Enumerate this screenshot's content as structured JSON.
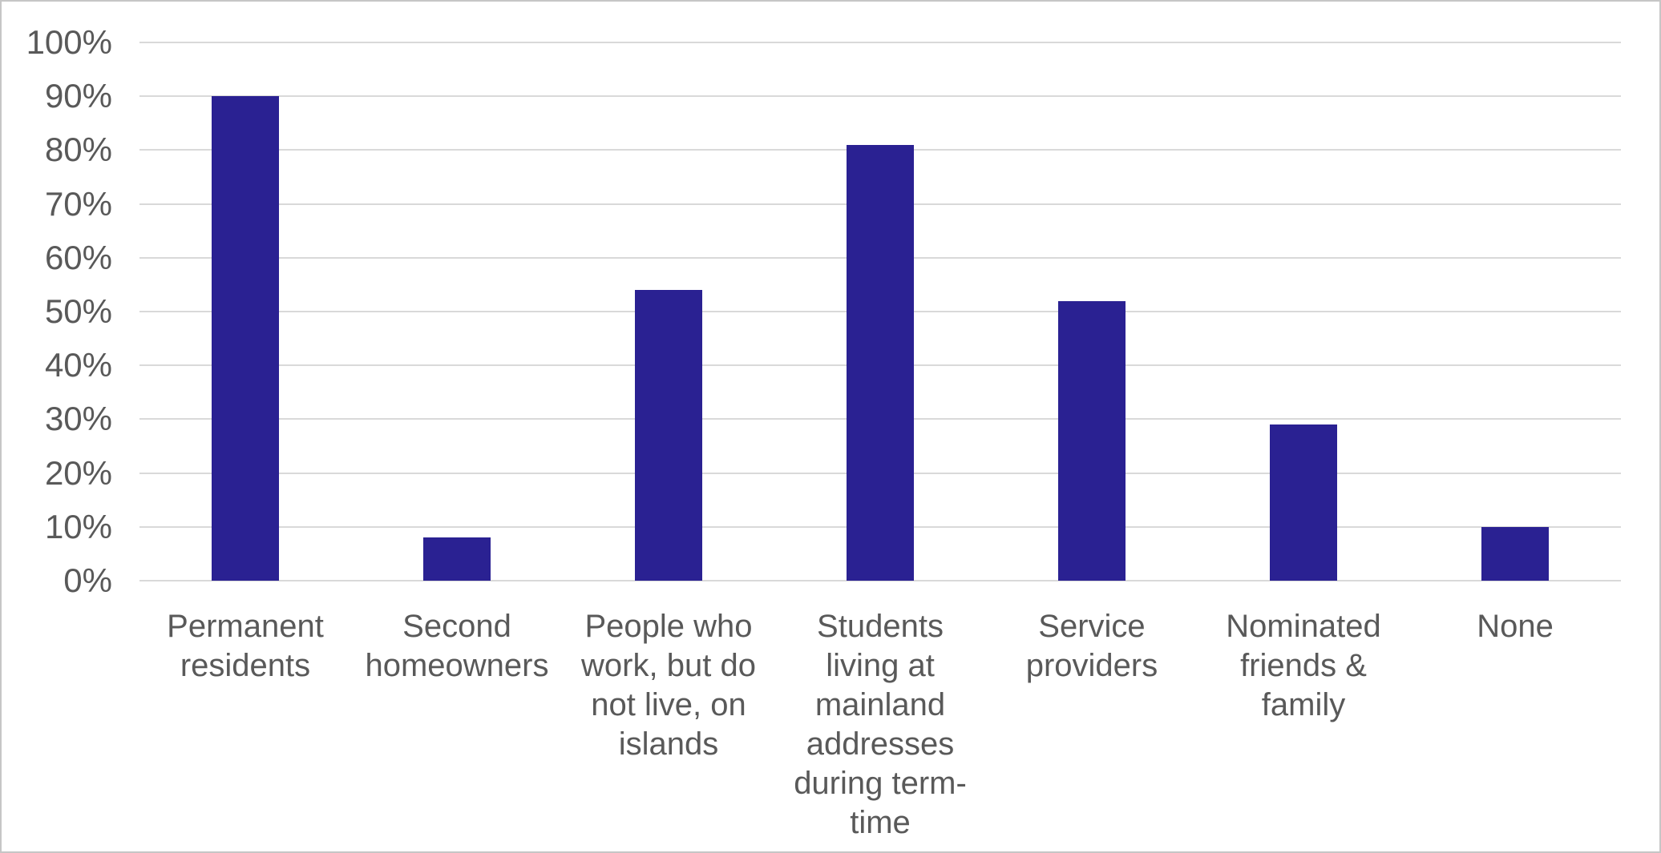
{
  "chart_data": {
    "type": "bar",
    "categories": [
      "Permanent residents",
      "Second homeowners",
      "People who work, but do not live, on islands",
      "Students living at mainland addresses during term-time",
      "Service providers",
      "Nominated friends & family",
      "None"
    ],
    "values": [
      90,
      8,
      54,
      81,
      52,
      29,
      10
    ],
    "title": "",
    "xlabel": "",
    "ylabel": "",
    "ylim": [
      0,
      100
    ],
    "yticks": [
      {
        "value": 0,
        "label": "0%"
      },
      {
        "value": 10,
        "label": "10%"
      },
      {
        "value": 20,
        "label": "20%"
      },
      {
        "value": 30,
        "label": "30%"
      },
      {
        "value": 40,
        "label": "40%"
      },
      {
        "value": 50,
        "label": "50%"
      },
      {
        "value": 60,
        "label": "60%"
      },
      {
        "value": 70,
        "label": "70%"
      },
      {
        "value": 80,
        "label": "80%"
      },
      {
        "value": 90,
        "label": "90%"
      },
      {
        "value": 100,
        "label": "100%"
      }
    ],
    "grid": true,
    "legend": false,
    "colors": {
      "bar": "#2A2192",
      "gridline": "#D9D9D9",
      "axis_text": "#595959",
      "background": "#FFFFFF",
      "frame_border": "#C6C6C6"
    }
  }
}
